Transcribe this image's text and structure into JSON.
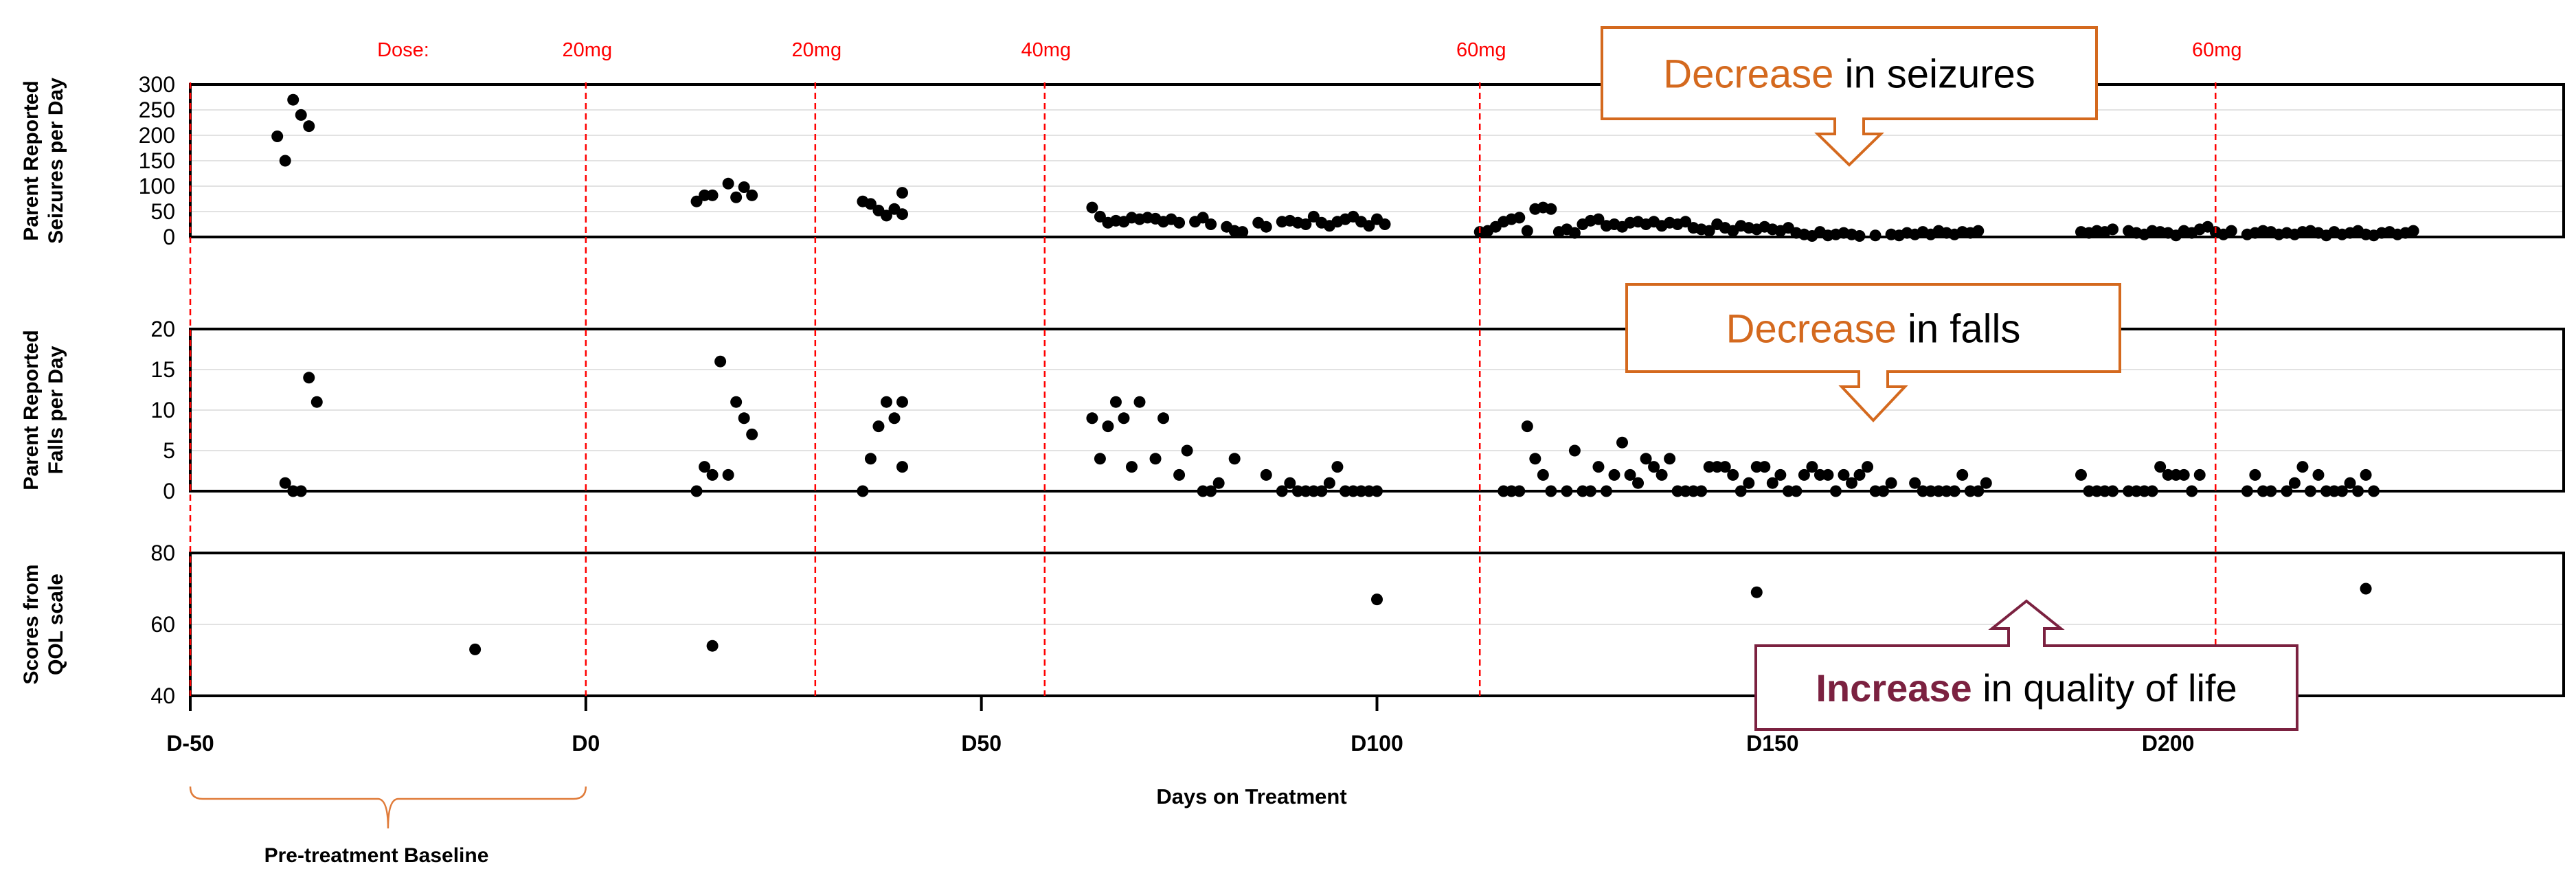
{
  "chart_data": {
    "type": "scatter",
    "x_axis": {
      "label": "Days on Treatment",
      "range": [
        -50,
        250
      ],
      "ticks": [
        {
          "value": -50,
          "label": "D-50"
        },
        {
          "value": 0,
          "label": "D0"
        },
        {
          "value": 50,
          "label": "D50"
        },
        {
          "value": 100,
          "label": "D100"
        },
        {
          "value": 150,
          "label": "D150"
        },
        {
          "value": 200,
          "label": "D200"
        }
      ]
    },
    "dose_label": "Dose:",
    "dose_changes": [
      {
        "day": 0,
        "label": "20mg"
      },
      {
        "day": 29,
        "label": "20mg"
      },
      {
        "day": 58,
        "label": "40mg"
      },
      {
        "day": 113,
        "label": "60mg"
      },
      {
        "day": 206,
        "label": "60mg"
      }
    ],
    "baseline": {
      "start": -50,
      "end": 0,
      "label": "Pre-treatment Baseline"
    },
    "panels": [
      {
        "ylabel": [
          "Parent Reported",
          "Seizures per Day"
        ],
        "ylim": [
          0,
          300
        ],
        "yticks": [
          0,
          50,
          100,
          150,
          200,
          250,
          300
        ],
        "grid": true,
        "points": [
          [
            -39,
            198
          ],
          [
            -38,
            150
          ],
          [
            -37,
            270
          ],
          [
            -36,
            240
          ],
          [
            -35,
            218
          ],
          [
            14,
            70
          ],
          [
            15,
            82
          ],
          [
            16,
            82
          ],
          [
            18,
            105
          ],
          [
            19,
            78
          ],
          [
            20,
            98
          ],
          [
            21,
            82
          ],
          [
            35,
            70
          ],
          [
            36,
            65
          ],
          [
            37,
            52
          ],
          [
            38,
            42
          ],
          [
            39,
            55
          ],
          [
            40,
            87
          ],
          [
            40,
            45
          ],
          [
            64,
            58
          ],
          [
            65,
            40
          ],
          [
            66,
            28
          ],
          [
            67,
            32
          ],
          [
            68,
            30
          ],
          [
            69,
            38
          ],
          [
            70,
            35
          ],
          [
            71,
            38
          ],
          [
            72,
            36
          ],
          [
            73,
            30
          ],
          [
            74,
            35
          ],
          [
            75,
            28
          ],
          [
            77,
            30
          ],
          [
            78,
            38
          ],
          [
            79,
            25
          ],
          [
            81,
            20
          ],
          [
            82,
            12
          ],
          [
            83,
            10
          ],
          [
            85,
            28
          ],
          [
            86,
            20
          ],
          [
            88,
            30
          ],
          [
            89,
            32
          ],
          [
            90,
            28
          ],
          [
            91,
            25
          ],
          [
            92,
            40
          ],
          [
            93,
            28
          ],
          [
            94,
            22
          ],
          [
            95,
            30
          ],
          [
            96,
            35
          ],
          [
            97,
            40
          ],
          [
            98,
            30
          ],
          [
            99,
            22
          ],
          [
            100,
            35
          ],
          [
            101,
            25
          ],
          [
            113,
            10
          ],
          [
            114,
            12
          ],
          [
            115,
            20
          ],
          [
            116,
            30
          ],
          [
            117,
            35
          ],
          [
            118,
            38
          ],
          [
            119,
            12
          ],
          [
            120,
            55
          ],
          [
            121,
            58
          ],
          [
            122,
            55
          ],
          [
            123,
            10
          ],
          [
            124,
            15
          ],
          [
            125,
            8
          ],
          [
            126,
            25
          ],
          [
            127,
            32
          ],
          [
            128,
            35
          ],
          [
            129,
            22
          ],
          [
            130,
            25
          ],
          [
            131,
            20
          ],
          [
            132,
            28
          ],
          [
            133,
            30
          ],
          [
            134,
            25
          ],
          [
            135,
            30
          ],
          [
            136,
            22
          ],
          [
            137,
            28
          ],
          [
            138,
            25
          ],
          [
            139,
            30
          ],
          [
            140,
            18
          ],
          [
            141,
            15
          ],
          [
            142,
            12
          ],
          [
            143,
            25
          ],
          [
            144,
            18
          ],
          [
            145,
            12
          ],
          [
            146,
            22
          ],
          [
            147,
            18
          ],
          [
            148,
            15
          ],
          [
            149,
            20
          ],
          [
            150,
            15
          ],
          [
            151,
            12
          ],
          [
            152,
            18
          ],
          [
            153,
            8
          ],
          [
            154,
            5
          ],
          [
            155,
            2
          ],
          [
            156,
            10
          ],
          [
            157,
            3
          ],
          [
            158,
            5
          ],
          [
            159,
            8
          ],
          [
            160,
            5
          ],
          [
            161,
            2
          ],
          [
            163,
            3
          ],
          [
            165,
            5
          ],
          [
            166,
            3
          ],
          [
            167,
            8
          ],
          [
            168,
            5
          ],
          [
            169,
            10
          ],
          [
            170,
            5
          ],
          [
            171,
            12
          ],
          [
            172,
            8
          ],
          [
            173,
            5
          ],
          [
            174,
            10
          ],
          [
            175,
            8
          ],
          [
            176,
            12
          ],
          [
            189,
            10
          ],
          [
            190,
            8
          ],
          [
            191,
            12
          ],
          [
            192,
            10
          ],
          [
            193,
            15
          ],
          [
            195,
            12
          ],
          [
            196,
            8
          ],
          [
            197,
            5
          ],
          [
            198,
            12
          ],
          [
            199,
            10
          ],
          [
            200,
            8
          ],
          [
            201,
            3
          ],
          [
            202,
            12
          ],
          [
            203,
            8
          ],
          [
            204,
            15
          ],
          [
            205,
            20
          ],
          [
            206,
            10
          ],
          [
            207,
            5
          ],
          [
            208,
            12
          ],
          [
            210,
            5
          ],
          [
            211,
            8
          ],
          [
            212,
            12
          ],
          [
            213,
            10
          ],
          [
            214,
            5
          ],
          [
            215,
            8
          ],
          [
            216,
            5
          ],
          [
            217,
            10
          ],
          [
            218,
            12
          ],
          [
            219,
            8
          ],
          [
            220,
            3
          ],
          [
            221,
            10
          ],
          [
            222,
            5
          ],
          [
            223,
            8
          ],
          [
            224,
            12
          ],
          [
            225,
            5
          ],
          [
            226,
            3
          ],
          [
            227,
            8
          ],
          [
            228,
            10
          ],
          [
            229,
            5
          ],
          [
            230,
            8
          ],
          [
            231,
            12
          ]
        ]
      },
      {
        "ylabel": [
          "Parent Reported",
          "Falls per Day"
        ],
        "ylim": [
          0,
          20
        ],
        "yticks": [
          0,
          5,
          10,
          15,
          20
        ],
        "grid": true,
        "points": [
          [
            -38,
            1
          ],
          [
            -37,
            0
          ],
          [
            -36,
            0
          ],
          [
            -35,
            14
          ],
          [
            -34,
            11
          ],
          [
            14,
            0
          ],
          [
            15,
            3
          ],
          [
            16,
            2
          ],
          [
            17,
            16
          ],
          [
            18,
            2
          ],
          [
            19,
            11
          ],
          [
            20,
            9
          ],
          [
            21,
            7
          ],
          [
            35,
            0
          ],
          [
            36,
            4
          ],
          [
            37,
            8
          ],
          [
            38,
            11
          ],
          [
            39,
            9
          ],
          [
            40,
            11
          ],
          [
            40,
            3
          ],
          [
            64,
            9
          ],
          [
            65,
            4
          ],
          [
            66,
            8
          ],
          [
            67,
            11
          ],
          [
            68,
            9
          ],
          [
            69,
            3
          ],
          [
            70,
            11
          ],
          [
            72,
            4
          ],
          [
            73,
            9
          ],
          [
            75,
            2
          ],
          [
            76,
            5
          ],
          [
            78,
            0
          ],
          [
            79,
            0
          ],
          [
            80,
            1
          ],
          [
            82,
            4
          ],
          [
            86,
            2
          ],
          [
            88,
            0
          ],
          [
            89,
            1
          ],
          [
            90,
            0
          ],
          [
            91,
            0
          ],
          [
            92,
            0
          ],
          [
            93,
            0
          ],
          [
            94,
            1
          ],
          [
            95,
            3
          ],
          [
            96,
            0
          ],
          [
            97,
            0
          ],
          [
            98,
            0
          ],
          [
            99,
            0
          ],
          [
            100,
            0
          ],
          [
            116,
            0
          ],
          [
            117,
            0
          ],
          [
            118,
            0
          ],
          [
            119,
            8
          ],
          [
            120,
            4
          ],
          [
            121,
            2
          ],
          [
            122,
            0
          ],
          [
            124,
            0
          ],
          [
            125,
            5
          ],
          [
            126,
            0
          ],
          [
            127,
            0
          ],
          [
            128,
            3
          ],
          [
            129,
            0
          ],
          [
            130,
            2
          ],
          [
            131,
            6
          ],
          [
            132,
            2
          ],
          [
            133,
            1
          ],
          [
            134,
            4
          ],
          [
            135,
            3
          ],
          [
            136,
            2
          ],
          [
            137,
            4
          ],
          [
            138,
            0
          ],
          [
            139,
            0
          ],
          [
            140,
            0
          ],
          [
            141,
            0
          ],
          [
            142,
            3
          ],
          [
            143,
            3
          ],
          [
            144,
            3
          ],
          [
            145,
            2
          ],
          [
            146,
            0
          ],
          [
            147,
            1
          ],
          [
            148,
            3
          ],
          [
            149,
            3
          ],
          [
            150,
            1
          ],
          [
            151,
            2
          ],
          [
            152,
            0
          ],
          [
            153,
            0
          ],
          [
            154,
            2
          ],
          [
            155,
            3
          ],
          [
            156,
            2
          ],
          [
            157,
            2
          ],
          [
            158,
            0
          ],
          [
            159,
            2
          ],
          [
            160,
            1
          ],
          [
            161,
            2
          ],
          [
            162,
            3
          ],
          [
            163,
            0
          ],
          [
            164,
            0
          ],
          [
            165,
            1
          ],
          [
            168,
            1
          ],
          [
            169,
            0
          ],
          [
            170,
            0
          ],
          [
            171,
            0
          ],
          [
            172,
            0
          ],
          [
            173,
            0
          ],
          [
            174,
            2
          ],
          [
            175,
            0
          ],
          [
            176,
            0
          ],
          [
            177,
            1
          ],
          [
            189,
            2
          ],
          [
            190,
            0
          ],
          [
            191,
            0
          ],
          [
            192,
            0
          ],
          [
            193,
            0
          ],
          [
            195,
            0
          ],
          [
            196,
            0
          ],
          [
            197,
            0
          ],
          [
            198,
            0
          ],
          [
            199,
            3
          ],
          [
            200,
            2
          ],
          [
            201,
            2
          ],
          [
            202,
            2
          ],
          [
            203,
            0
          ],
          [
            204,
            2
          ],
          [
            210,
            0
          ],
          [
            211,
            2
          ],
          [
            212,
            0
          ],
          [
            213,
            0
          ],
          [
            215,
            0
          ],
          [
            216,
            1
          ],
          [
            217,
            3
          ],
          [
            218,
            0
          ],
          [
            219,
            2
          ],
          [
            220,
            0
          ],
          [
            221,
            0
          ],
          [
            222,
            0
          ],
          [
            223,
            1
          ],
          [
            224,
            0
          ],
          [
            225,
            2
          ],
          [
            226,
            0
          ]
        ]
      },
      {
        "ylabel": [
          "Scores from",
          "QOL scale"
        ],
        "ylim": [
          40,
          80
        ],
        "yticks": [
          40,
          60,
          80
        ],
        "grid": true,
        "points": [
          [
            -14,
            53
          ],
          [
            16,
            54
          ],
          [
            100,
            67
          ],
          [
            148,
            69
          ],
          [
            225,
            70
          ]
        ]
      }
    ],
    "annotations": [
      {
        "emphasis": "Decrease",
        "rest": " in seizures",
        "color": "#d4691e"
      },
      {
        "emphasis": "Decrease",
        "rest": " in falls",
        "color": "#d4691e"
      },
      {
        "emphasis": "Increase",
        "rest": " in quality of life",
        "color": "#7b2140"
      }
    ]
  }
}
